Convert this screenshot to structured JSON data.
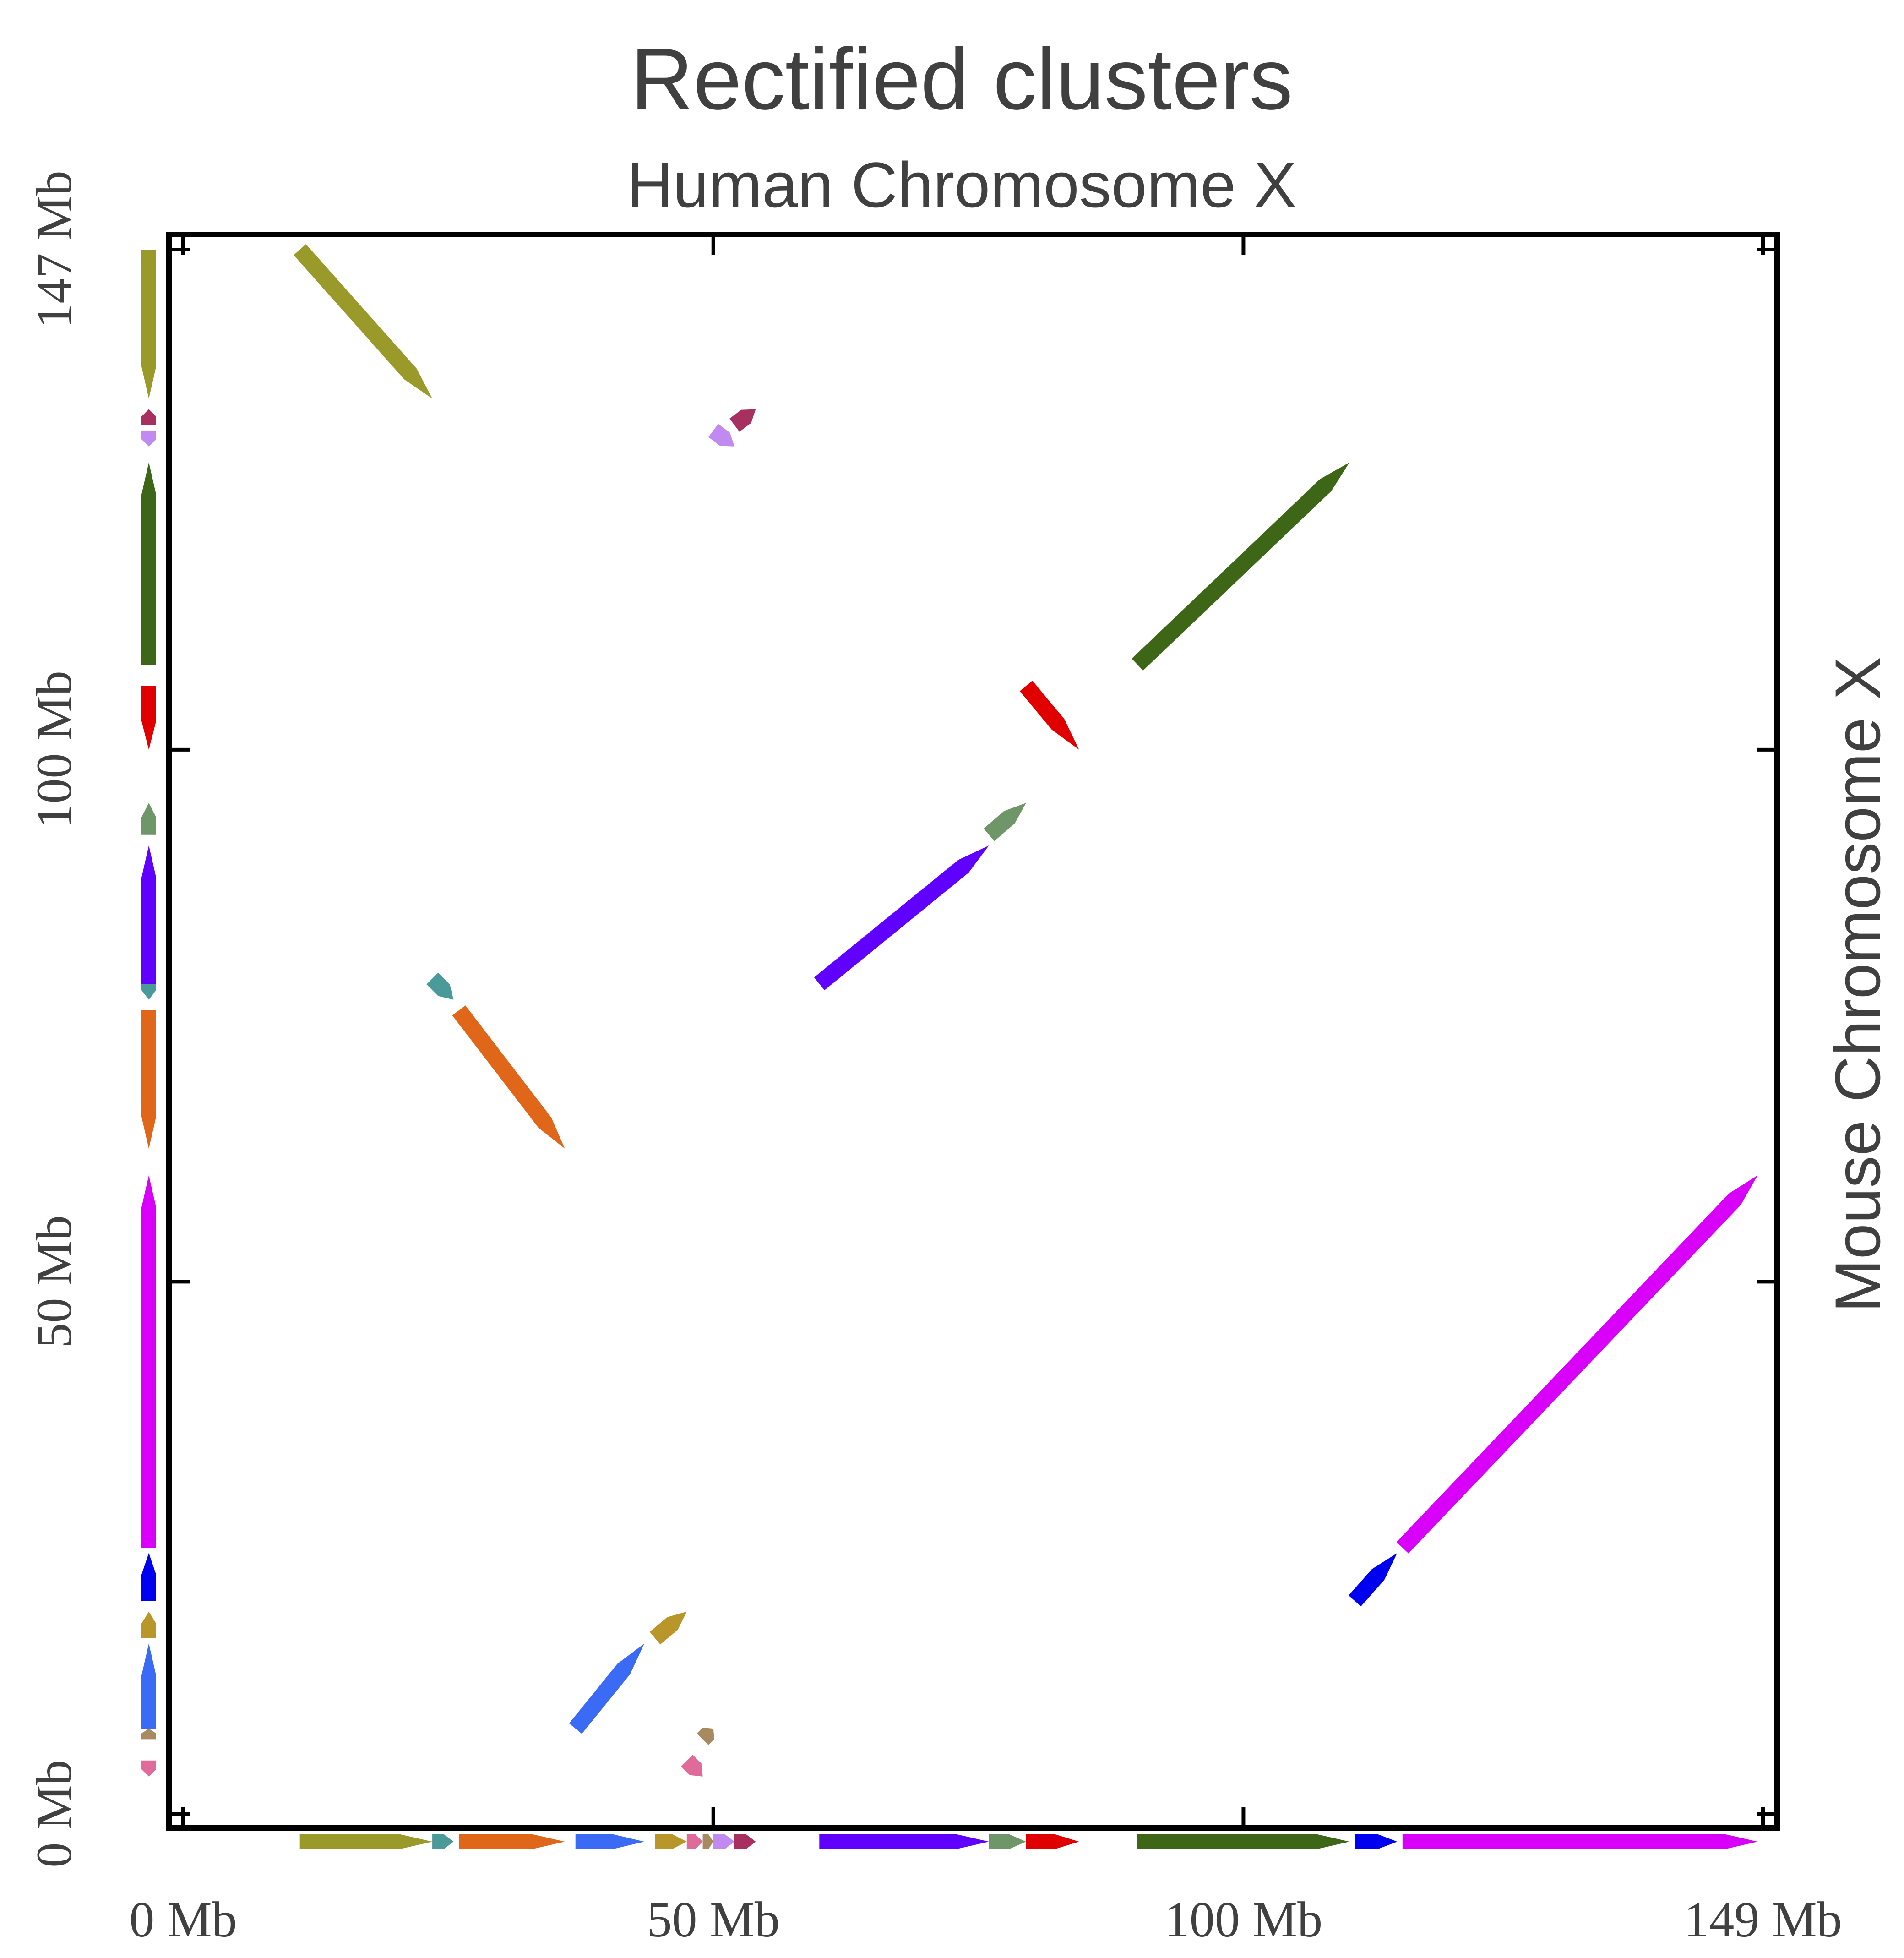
{
  "chart_data": {
    "type": "scatter",
    "title": "Rectified clusters",
    "subtitle": "Human Chromosome X",
    "ylabel": "Mouse Chromosome X",
    "xlim": [
      0,
      149
    ],
    "ylim": [
      0,
      147
    ],
    "x_ticks": [
      {
        "value": 0,
        "label": "0 Mb"
      },
      {
        "value": 50,
        "label": "50 Mb"
      },
      {
        "value": 100,
        "label": "100 Mb"
      },
      {
        "value": 149,
        "label": "149 Mb"
      }
    ],
    "y_ticks": [
      {
        "value": 0,
        "label": "0 Mb"
      },
      {
        "value": 50,
        "label": "50 Mb"
      },
      {
        "value": 100,
        "label": "100 Mb"
      },
      {
        "value": 147,
        "label": "147 Mb"
      }
    ],
    "clusters": [
      {
        "color": "#9a9a2a",
        "x0": 11.0,
        "x1": 23.5,
        "y0": 147.0,
        "y1": 133.0
      },
      {
        "color": "#4a9a9a",
        "x0": 23.5,
        "x1": 25.5,
        "y0": 78.5,
        "y1": 76.5
      },
      {
        "color": "#e0661a",
        "x0": 26.0,
        "x1": 36.0,
        "y0": 75.5,
        "y1": 62.5
      },
      {
        "color": "#3b6bf5",
        "x0": 37.0,
        "x1": 43.5,
        "y0": 8.0,
        "y1": 16.0
      },
      {
        "color": "#b8962a",
        "x0": 44.5,
        "x1": 47.5,
        "y0": 16.5,
        "y1": 19.0
      },
      {
        "color": "#e06a9a",
        "x0": 47.5,
        "x1": 49.0,
        "y0": 5.0,
        "y1": 3.5
      },
      {
        "color": "#a88a60",
        "x0": 49.0,
        "x1": 50.0,
        "y0": 7.0,
        "y1": 8.0
      },
      {
        "color": "#c08af0",
        "x0": 50.0,
        "x1": 52.0,
        "y0": 130.0,
        "y1": 128.5
      },
      {
        "color": "#a83060",
        "x0": 52.0,
        "x1": 54.0,
        "y0": 130.5,
        "y1": 132.0
      },
      {
        "color": "#6000ff",
        "x0": 60.0,
        "x1": 76.0,
        "y0": 78.0,
        "y1": 91.0
      },
      {
        "color": "#6e9668",
        "x0": 76.0,
        "x1": 79.5,
        "y0": 92.0,
        "y1": 95.0
      },
      {
        "color": "#e00000",
        "x0": 79.5,
        "x1": 84.5,
        "y0": 106.0,
        "y1": 100.0
      },
      {
        "color": "#3d6616",
        "x0": 90.0,
        "x1": 110.0,
        "y0": 108.0,
        "y1": 127.0
      },
      {
        "color": "#0000f0",
        "x0": 110.5,
        "x1": 114.5,
        "y0": 20.0,
        "y1": 24.5
      },
      {
        "color": "#d800f8",
        "x0": 115.0,
        "x1": 148.5,
        "y0": 25.0,
        "y1": 60.0
      }
    ]
  }
}
